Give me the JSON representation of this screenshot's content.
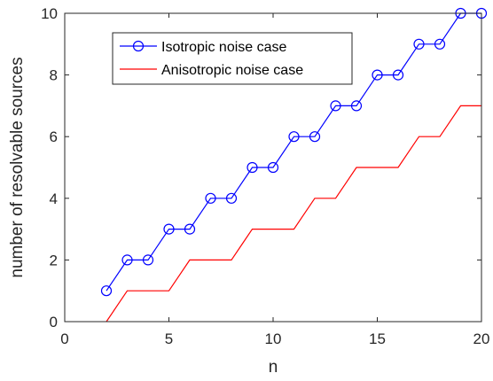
{
  "chart_data": {
    "type": "line",
    "xlabel": "n",
    "ylabel": "number of resolvable sources",
    "xlim": [
      0,
      20
    ],
    "ylim": [
      0,
      10
    ],
    "xticks": [
      0,
      5,
      10,
      15,
      20
    ],
    "yticks": [
      0,
      2,
      4,
      6,
      8,
      10
    ],
    "grid": false,
    "legend_position": "upper-left",
    "series": [
      {
        "name": "Isotropic noise case",
        "color": "#0000ff",
        "marker": "circle",
        "style": "line-with-markers",
        "x": [
          2,
          3,
          4,
          5,
          6,
          7,
          8,
          9,
          10,
          11,
          12,
          13,
          14,
          15,
          16,
          17,
          18,
          19,
          20
        ],
        "y": [
          1,
          2,
          2,
          3,
          3,
          4,
          4,
          5,
          5,
          6,
          6,
          7,
          7,
          8,
          8,
          9,
          9,
          10,
          10
        ]
      },
      {
        "name": "Anisotropic noise case",
        "color": "#ff0000",
        "marker": "none",
        "style": "staircase",
        "x": [
          2,
          2.5,
          3,
          5,
          5.5,
          6,
          8,
          8.5,
          9,
          11,
          11.5,
          12,
          13,
          13.5,
          14,
          16,
          16.5,
          17,
          18,
          18.5,
          19,
          20
        ],
        "y": [
          0,
          0.5,
          1,
          1,
          1.5,
          2,
          2,
          2.5,
          3,
          3,
          3.5,
          4,
          4,
          4.5,
          5,
          5,
          5.5,
          6,
          6,
          6.5,
          7,
          7
        ]
      }
    ]
  }
}
